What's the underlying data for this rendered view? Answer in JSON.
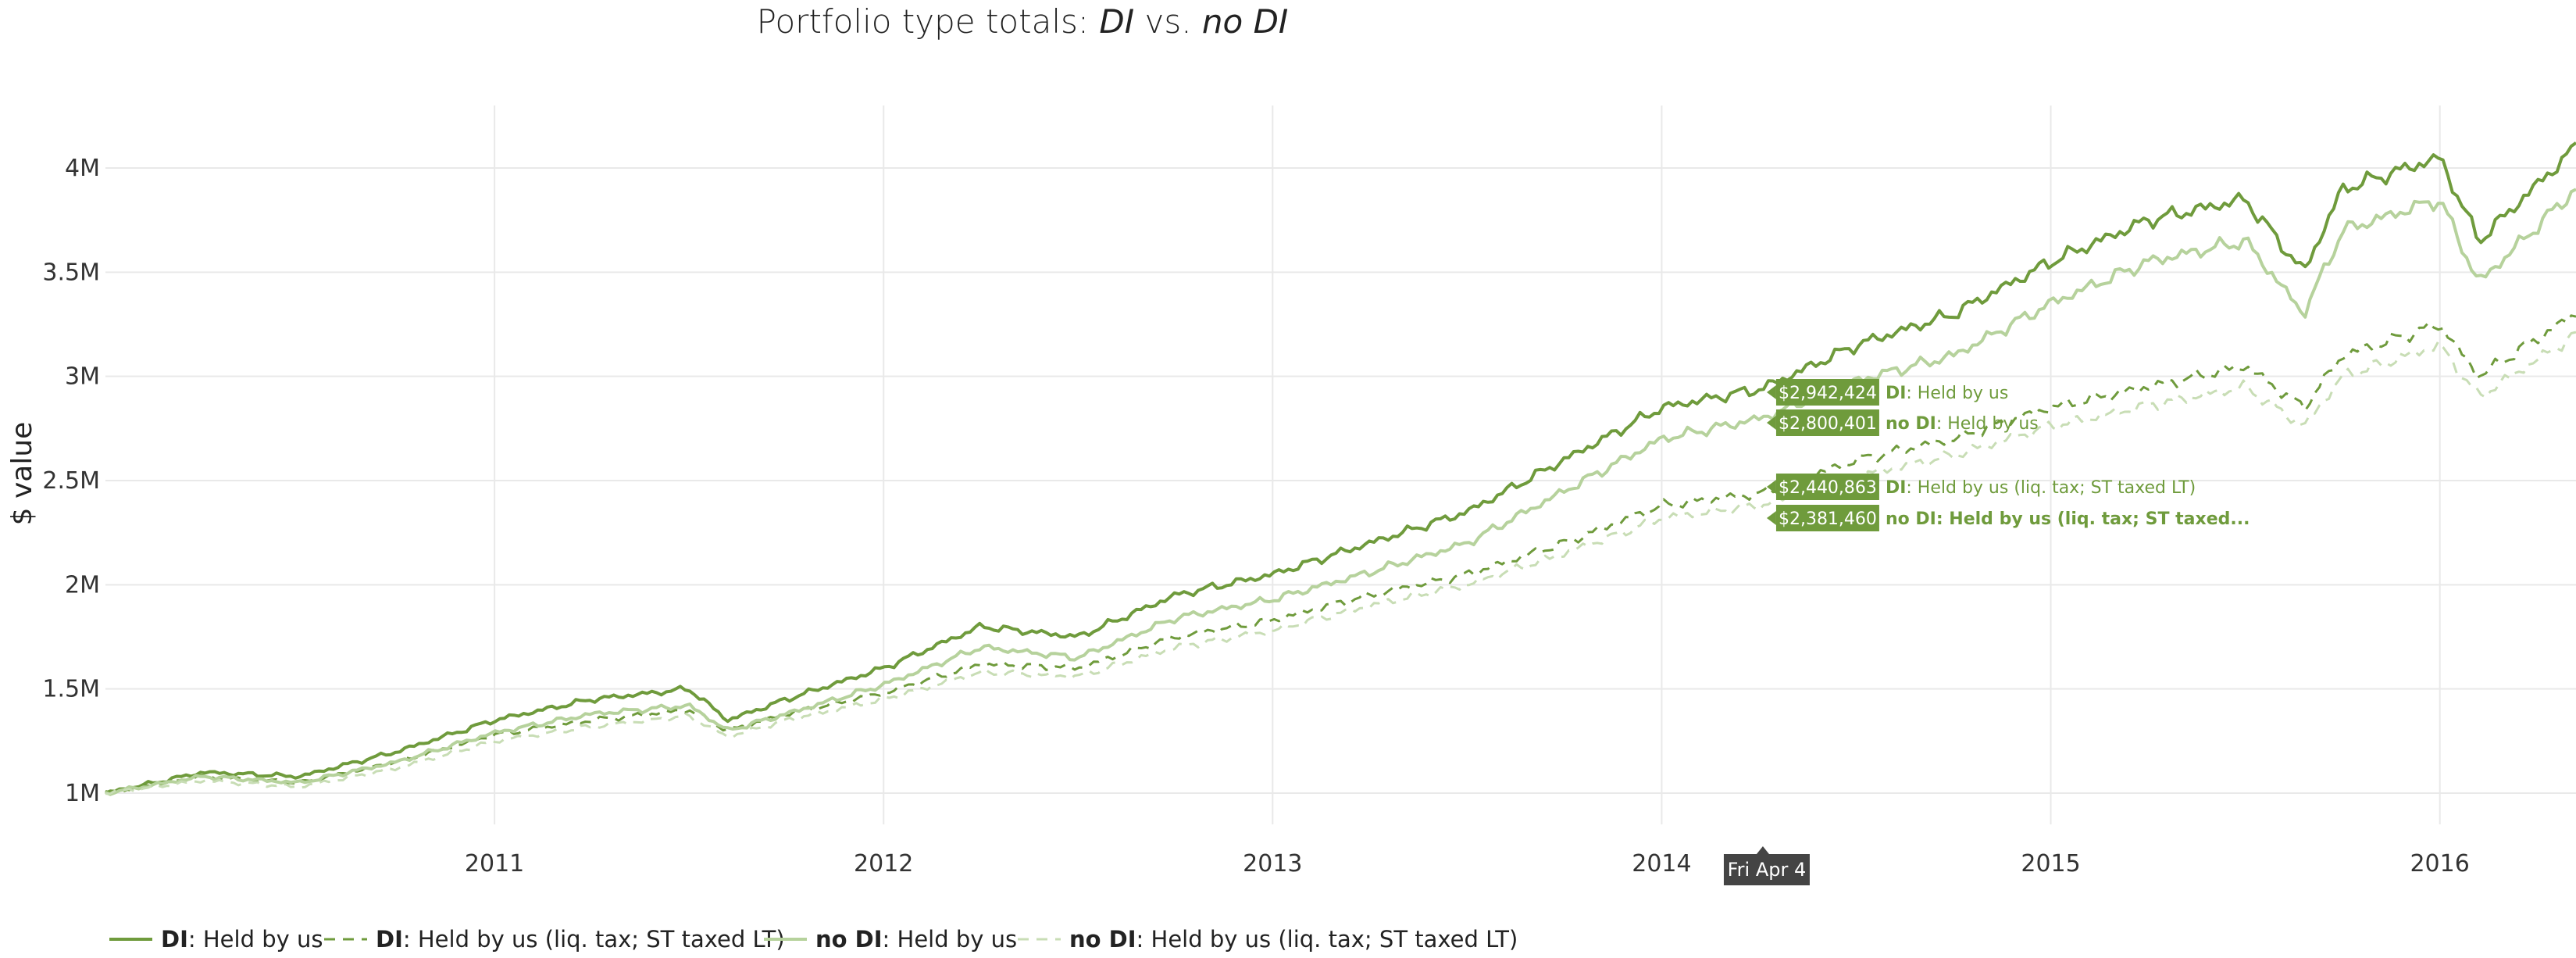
{
  "chart_data": {
    "type": "line",
    "title": {
      "prefix": "Portfolio type totals: ",
      "a": "DI",
      "mid": " vs. ",
      "b": "no DI"
    },
    "ylabel": "$ value",
    "xlabel": "",
    "ylim": [
      850000,
      4300000
    ],
    "xlim": [
      2010.0,
      2016.35
    ],
    "yticks": [
      {
        "value": 1000000,
        "label": "1M"
      },
      {
        "value": 1500000,
        "label": "1.5M"
      },
      {
        "value": 2000000,
        "label": "2M"
      },
      {
        "value": 2500000,
        "label": "2.5M"
      },
      {
        "value": 3000000,
        "label": "3M"
      },
      {
        "value": 3500000,
        "label": "3.5M"
      },
      {
        "value": 4000000,
        "label": "4M"
      }
    ],
    "xticks": [
      {
        "value": 2011,
        "label": "2011"
      },
      {
        "value": 2012,
        "label": "2012"
      },
      {
        "value": 2013,
        "label": "2013"
      },
      {
        "value": 2014,
        "label": "2014"
      },
      {
        "value": 2015,
        "label": "2015"
      },
      {
        "value": 2016,
        "label": "2016"
      }
    ],
    "grid": true,
    "legend_position": "bottom-left",
    "hover": {
      "x": 2014.26,
      "x_label": "Fri Apr  4",
      "tooltips": [
        {
          "value_label": "$2,942,424",
          "prefix": "DI",
          "text": ": Held by us",
          "series": 0,
          "value": 2942424
        },
        {
          "value_label": "$2,800,401",
          "prefix": "no DI",
          "text": ": Held by us",
          "series": 2,
          "value": 2800401
        },
        {
          "value_label": "$2,440,863",
          "prefix": "DI",
          "text": ": Held by us (liq. tax; ST taxed LT)",
          "series": 1,
          "value": 2440863
        },
        {
          "value_label": "$2,381,460",
          "prefix": "no DI",
          "text": ": Held by us (liq. tax; ST taxed...",
          "series": 3,
          "value": 2381460,
          "bold": true
        }
      ]
    },
    "x": [
      2010.0,
      2010.25,
      2010.5,
      2010.75,
      2011.0,
      2011.25,
      2011.5,
      2011.6,
      2011.75,
      2012.0,
      2012.25,
      2012.5,
      2012.75,
      2013.0,
      2013.25,
      2013.5,
      2013.75,
      2014.0,
      2014.26,
      2014.5,
      2014.75,
      2015.0,
      2015.25,
      2015.5,
      2015.65,
      2015.75,
      2016.0,
      2016.1,
      2016.35
    ],
    "series": [
      {
        "name": "DI: Held by us",
        "legend_prefix": "DI",
        "legend_text": ": Held by us",
        "color": "#6f9b3c",
        "dashed": false,
        "width": 4,
        "values": [
          1000000,
          1100000,
          1080000,
          1200000,
          1350000,
          1450000,
          1500000,
          1350000,
          1450000,
          1600000,
          1800000,
          1750000,
          1950000,
          2050000,
          2200000,
          2350000,
          2600000,
          2850000,
          2942424,
          3150000,
          3300000,
          3550000,
          3750000,
          3850000,
          3500000,
          3900000,
          4050000,
          3650000,
          4100000
        ]
      },
      {
        "name": "DI: Held by us (liq. tax; ST taxed LT)",
        "legend_prefix": "DI",
        "legend_text": ": Held by us (liq. tax; ST taxed LT)",
        "color": "#6f9b3c",
        "dashed": true,
        "width": 3,
        "values": [
          1000000,
          1080000,
          1050000,
          1150000,
          1280000,
          1350000,
          1400000,
          1300000,
          1380000,
          1480000,
          1620000,
          1600000,
          1750000,
          1830000,
          1950000,
          2050000,
          2200000,
          2380000,
          2440863,
          2600000,
          2700000,
          2850000,
          2950000,
          3050000,
          2850000,
          3100000,
          3250000,
          3000000,
          3300000
        ]
      },
      {
        "name": "no DI: Held by us",
        "legend_prefix": "no DI",
        "legend_text": ": Held by us",
        "color": "#b6d29c",
        "dashed": false,
        "width": 4,
        "values": [
          1000000,
          1080000,
          1050000,
          1150000,
          1290000,
          1380000,
          1420000,
          1300000,
          1380000,
          1520000,
          1700000,
          1650000,
          1840000,
          1930000,
          2060000,
          2200000,
          2450000,
          2700000,
          2800401,
          2980000,
          3100000,
          3350000,
          3550000,
          3650000,
          3300000,
          3700000,
          3850000,
          3450000,
          3900000
        ]
      },
      {
        "name": "no DI: Held by us (liq. tax; ST taxed LT)",
        "legend_prefix": "no DI",
        "legend_text": ": Held by us (liq. tax; ST taxed LT)",
        "color": "#c8ddb5",
        "dashed": true,
        "width": 3,
        "values": [
          1000000,
          1060000,
          1030000,
          1120000,
          1250000,
          1320000,
          1370000,
          1270000,
          1350000,
          1450000,
          1580000,
          1560000,
          1700000,
          1780000,
          1900000,
          2000000,
          2150000,
          2320000,
          2381460,
          2520000,
          2620000,
          2760000,
          2860000,
          2950000,
          2760000,
          3000000,
          3150000,
          2900000,
          3200000
        ]
      }
    ]
  }
}
